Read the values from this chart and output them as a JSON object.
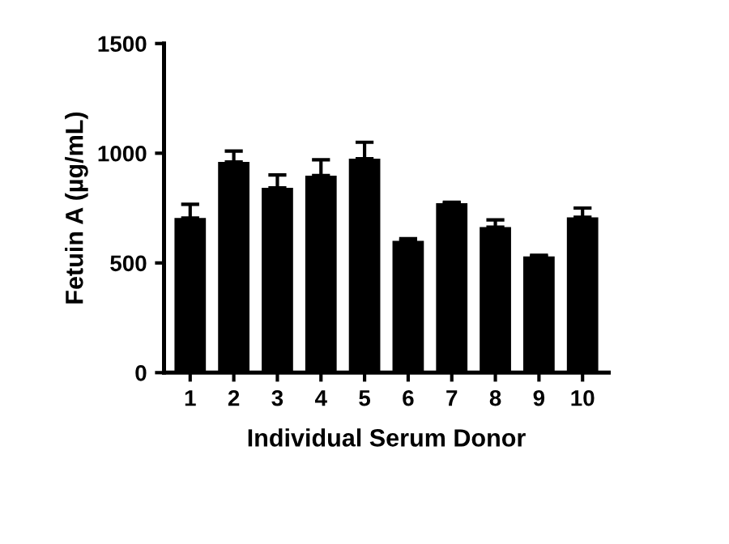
{
  "chart_data": {
    "type": "bar",
    "xlabel": "Individual Serum Donor",
    "ylabel": "Fetuin A (µg/mL)",
    "categories": [
      "1",
      "2",
      "3",
      "4",
      "5",
      "6",
      "7",
      "8",
      "9",
      "10"
    ],
    "values": [
      705,
      960,
      842,
      898,
      975,
      601,
      772,
      663,
      530,
      708
    ],
    "errors": [
      [
        705,
        767
      ],
      [
        960,
        1010
      ],
      [
        842,
        901
      ],
      [
        898,
        970
      ],
      [
        975,
        1050
      ],
      [
        601,
        611
      ],
      [
        772,
        777
      ],
      [
        663,
        696
      ],
      [
        530,
        535
      ],
      [
        708,
        750
      ]
    ],
    "color": "#000000",
    "ylim": [
      0,
      1500
    ],
    "yticks": [
      0,
      500,
      1000,
      1500
    ],
    "grid": false
  }
}
